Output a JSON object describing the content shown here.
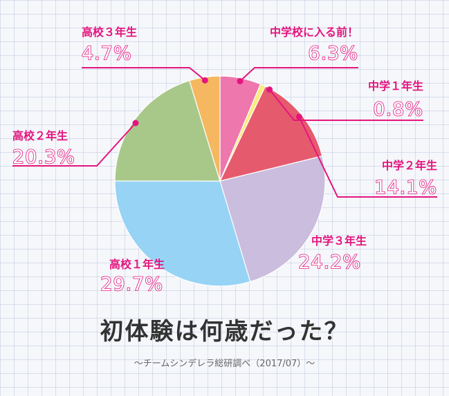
{
  "title": "初体験は何歳だった？",
  "source": "〜チームシンデレラ総研調べ（2017/07）〜",
  "chart_data": {
    "type": "pie",
    "title": "初体験は何歳だった？",
    "unit": "%",
    "start": "12 o'clock",
    "direction": "clockwise",
    "slices": [
      {
        "label": "中学校に入る前！",
        "value": 6.3,
        "value_text": "6.3%",
        "color": "#ee77ad"
      },
      {
        "label": "中学１年生",
        "value": 0.8,
        "value_text": "0.8%",
        "color": "#f9ec7d"
      },
      {
        "label": "中学２年生",
        "value": 14.1,
        "value_text": "14.1%",
        "color": "#e65a6e"
      },
      {
        "label": "中学３年生",
        "value": 24.2,
        "value_text": "24.2%",
        "color": "#cabddd"
      },
      {
        "label": "高校１年生",
        "value": 29.7,
        "value_text": "29.7%",
        "color": "#97d3f5"
      },
      {
        "label": "高校２年生",
        "value": 20.3,
        "value_text": "20.3%",
        "color": "#a8c88a"
      },
      {
        "label": "高校３年生",
        "value": 4.7,
        "value_text": "4.7%",
        "color": "#f5b760"
      }
    ],
    "accent_color": "#e4147e"
  }
}
